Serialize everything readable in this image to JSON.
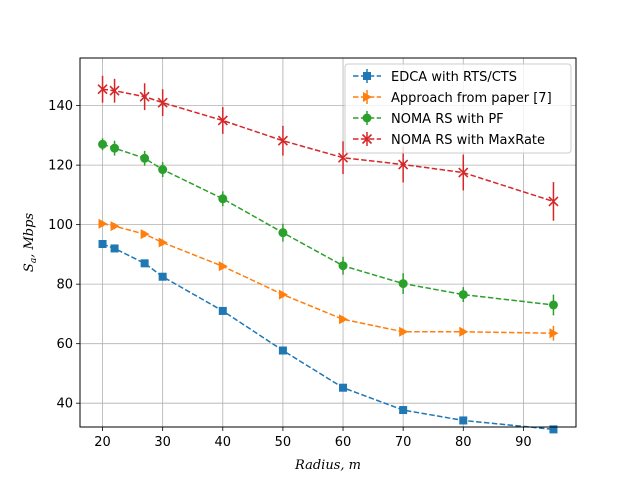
{
  "chart_data": {
    "type": "line",
    "title": "",
    "xlabel": "Radius,  m",
    "ylabel_main": "S",
    "ylabel_sub": "a",
    "ylabel_rest": ", Mbps",
    "x": [
      20,
      22,
      27,
      30,
      40,
      50,
      60,
      70,
      80,
      95
    ],
    "xlim": [
      16.25,
      98.75
    ],
    "ylim": [
      32.0,
      156.0
    ],
    "xticks": [
      "20",
      "30",
      "40",
      "50",
      "60",
      "70",
      "80",
      "90"
    ],
    "yticks": [
      "40",
      "60",
      "80",
      "100",
      "120",
      "140"
    ],
    "grid": true,
    "legend_position": "top-right",
    "series": [
      {
        "name": "EDCA with RTS/CTS",
        "color": "#1f77b4",
        "marker": "square",
        "values": [
          93.5,
          92,
          87,
          82.5,
          71,
          57.7,
          45.2,
          37.7,
          34.2,
          31.2
        ],
        "errors": [
          1,
          1,
          1,
          1,
          1,
          1,
          1,
          1,
          1,
          1
        ]
      },
      {
        "name": "Approach from paper [7]",
        "color": "#ff7f0e",
        "marker": "triangle-right",
        "values": [
          100.3,
          99.5,
          96.8,
          94,
          86,
          76.5,
          68.2,
          64,
          64,
          63.5
        ],
        "errors": [
          1,
          1,
          1,
          1,
          1,
          1,
          1,
          1,
          1,
          2.5
        ]
      },
      {
        "name": "NOMA RS with PF",
        "color": "#2ca02c",
        "marker": "circle",
        "values": [
          127,
          125.7,
          122.3,
          118.5,
          108.7,
          97.3,
          86.2,
          80.2,
          76.5,
          73
        ],
        "errors": [
          2,
          2.5,
          2.5,
          2.5,
          2.5,
          3,
          3,
          3.5,
          2.5,
          3.5
        ]
      },
      {
        "name": "NOMA RS with MaxRate",
        "color": "#d62728",
        "marker": "x",
        "values": [
          145.5,
          145,
          143,
          141,
          135,
          128.2,
          122.5,
          120.2,
          117.5,
          107.8
        ],
        "errors": [
          4.5,
          4,
          4.5,
          4.5,
          4.5,
          5,
          5.5,
          6,
          6,
          6.5
        ]
      }
    ]
  }
}
